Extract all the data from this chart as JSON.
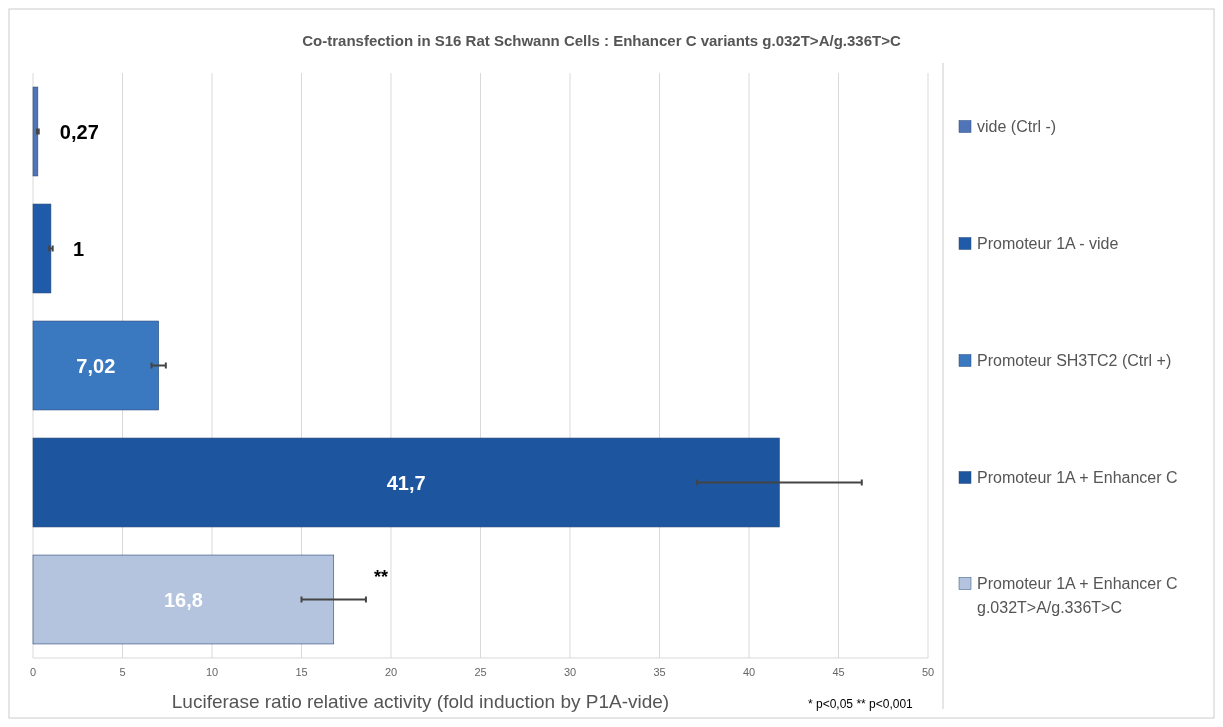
{
  "chart_data": {
    "type": "bar",
    "orientation": "horizontal",
    "title": "Co-transfection  in S16 Rat Schwann Cells : Enhancer C variants g.032T>A/g.336T>C",
    "xlabel": "Luciferase ratio relative activity (fold induction by P1A-vide)",
    "categories": [
      null,
      null,
      null,
      null,
      null
    ],
    "series": [
      {
        "name": "vide (Ctrl -)",
        "color": "#4f75b8",
        "values": [
          0.27,
          null,
          null,
          null,
          null
        ],
        "errors": [
          0.05,
          null,
          null,
          null,
          null
        ],
        "value_labels": [
          "0,27",
          null,
          null,
          null,
          null
        ]
      },
      {
        "name": "Promoteur 1A - vide",
        "color": "#1f5ba8",
        "values": [
          null,
          1,
          null,
          null,
          null
        ],
        "errors": [
          null,
          0.1,
          null,
          null,
          null
        ],
        "value_labels": [
          null,
          "1",
          null,
          null,
          null
        ]
      },
      {
        "name": "Promoteur SH3TC2 (Ctrl +)",
        "color": "#3a78c0",
        "values": [
          null,
          null,
          7.02,
          null,
          null
        ],
        "errors": [
          null,
          null,
          0.4,
          null,
          null
        ],
        "value_labels": [
          null,
          null,
          "7,02",
          null,
          null
        ]
      },
      {
        "name": "Promoteur 1A + Enhancer C",
        "color": "#1d569e",
        "values": [
          null,
          null,
          null,
          41.7,
          null
        ],
        "errors": [
          null,
          null,
          null,
          4.6,
          null
        ],
        "value_labels": [
          null,
          null,
          null,
          "41,7",
          null
        ]
      },
      {
        "name": "Promoteur 1A + Enhancer C g.032T>A/g.336T>C",
        "color": "#b4c3de",
        "values": [
          null,
          null,
          null,
          null,
          16.8
        ],
        "errors": [
          null,
          null,
          null,
          null,
          1.8
        ],
        "value_labels": [
          null,
          null,
          null,
          null,
          "16,8"
        ]
      }
    ],
    "xlim": [
      0,
      50
    ],
    "xticks": [
      0,
      5,
      10,
      15,
      20,
      25,
      30,
      35,
      40,
      45,
      50
    ],
    "grid": "x",
    "legend": "right",
    "annotations": [
      "**",
      "* p<0,05 ** p<0,001"
    ]
  }
}
